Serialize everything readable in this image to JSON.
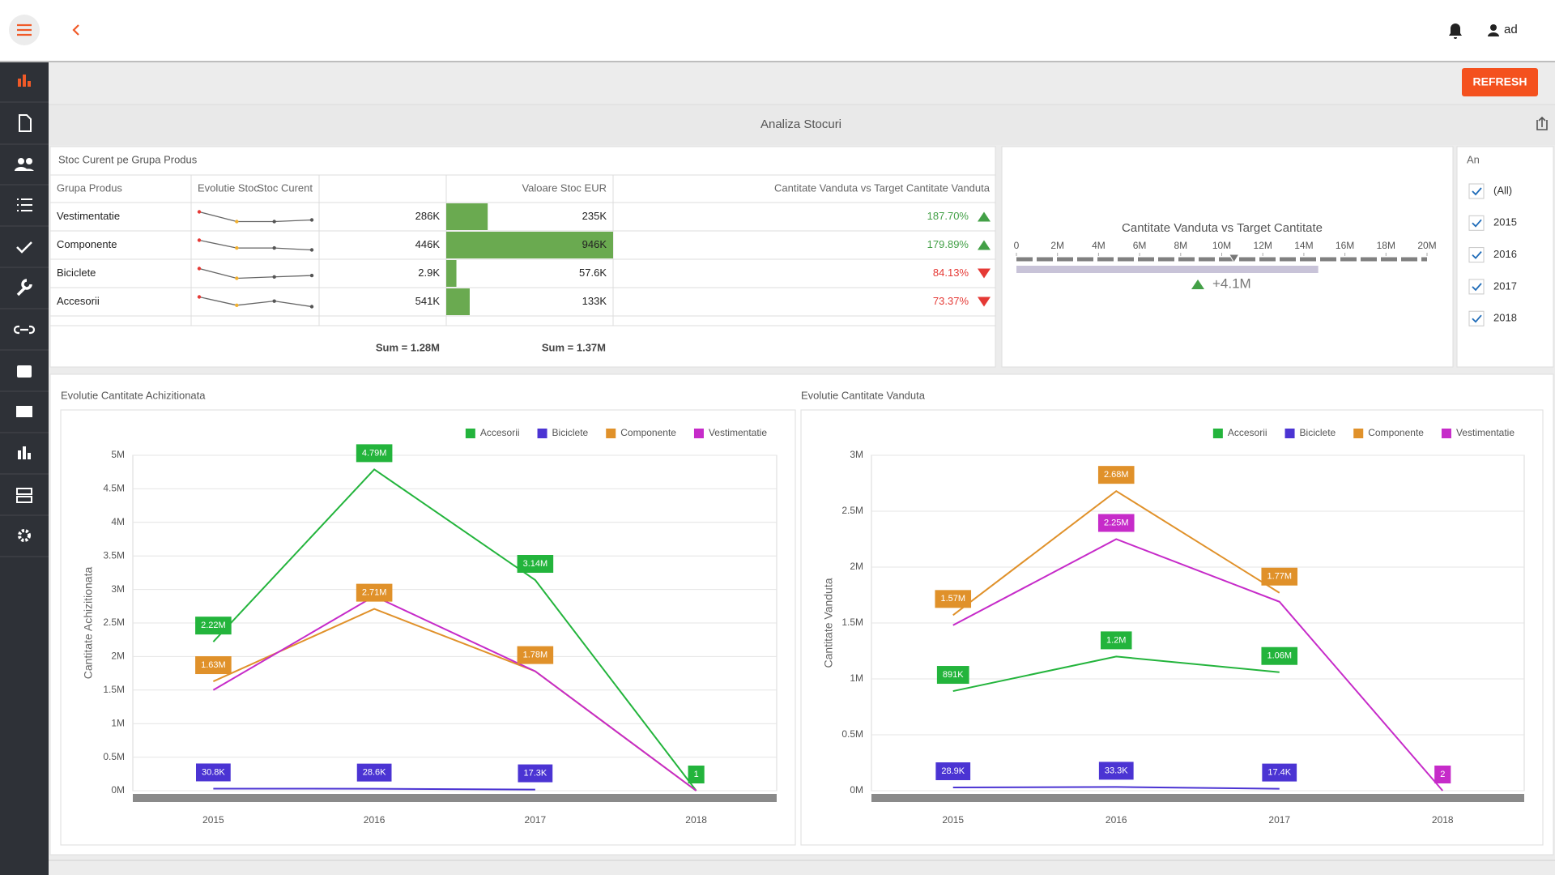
{
  "header": {
    "user": "ad"
  },
  "toolbar": {
    "button": "REFRESH"
  },
  "dashboard": {
    "title": "Analiza Stocuri"
  },
  "grid": {
    "title": "Stoc Curent pe Grupa Produs",
    "columns": [
      "Grupa Produs",
      "Evolutie Stoc",
      "Stoc Curent",
      "Valoare Stoc EUR",
      "Cantitate Vanduta vs Target Cantitate Vanduta"
    ],
    "bar_color": "#6aaa50",
    "up_color": "#43a047",
    "down_color": "#e53935",
    "rows": [
      {
        "group": "Vestimentatie",
        "trend": [
          8,
          2,
          2,
          3
        ],
        "stock": "286K",
        "value": 235000,
        "value_label": "235K",
        "ratio": "187.70%",
        "direction": "up"
      },
      {
        "group": "Componente",
        "trend": [
          8,
          4,
          4,
          3
        ],
        "stock": "446K",
        "value": 946000,
        "value_label": "946K",
        "ratio": "179.89%",
        "direction": "up"
      },
      {
        "group": "Biciclete",
        "trend": [
          8,
          1,
          2,
          3
        ],
        "stock": "2.9K",
        "value": 57600,
        "value_label": "57.6K",
        "ratio": "84.13%",
        "direction": "down"
      },
      {
        "group": "Accesorii",
        "trend": [
          7,
          1,
          4,
          0
        ],
        "stock": "541K",
        "value": 133000,
        "value_label": "133K",
        "ratio": "73.37%",
        "direction": "down"
      }
    ],
    "sums": [
      "Sum = 1.28M",
      "Sum = 1.37M"
    ]
  },
  "gauge": {
    "title": "Cantitate Vanduta vs Target Cantitate",
    "xlim": [
      0,
      20000000
    ],
    "xticks": [
      0,
      {
        "value": 2000000,
        "label": "2M"
      },
      {
        "value": 4000000,
        "label": "4M"
      },
      {
        "value": 6000000,
        "label": "6M"
      },
      {
        "value": 8000000,
        "label": "8M"
      },
      {
        "value": 10000000,
        "label": "10M"
      },
      {
        "value": 12000000,
        "label": "12M"
      },
      {
        "value": 14000000,
        "label": "14M"
      },
      {
        "value": 16000000,
        "label": "16M"
      },
      {
        "value": 18000000,
        "label": "18M"
      },
      {
        "value": 20000000,
        "label": "20M"
      }
    ],
    "actual": 14700000,
    "target": 10600000,
    "delta": "+4.1M"
  },
  "filter": {
    "title": "An",
    "items": [
      "(All)",
      "2015",
      "2016",
      "2017",
      "2018"
    ],
    "checked": [
      true,
      true,
      true,
      true,
      true
    ]
  },
  "chart_data": [
    {
      "type": "line",
      "title": "Evolutie Cantitate Achizitionata",
      "y_label": "Cantitate Achizitionata",
      "categories": [
        "2015",
        "2016",
        "2017",
        "2018"
      ],
      "ylim": [
        0,
        5000000
      ],
      "yticks": [
        {
          "value": 0,
          "label": "0M"
        },
        {
          "value": 500000,
          "label": "0.5M"
        },
        {
          "value": 1000000,
          "label": "1M"
        },
        {
          "value": 1500000,
          "label": "1.5M"
        },
        {
          "value": 2000000,
          "label": "2M"
        },
        {
          "value": 2500000,
          "label": "2.5M"
        },
        {
          "value": 3000000,
          "label": "3M"
        },
        {
          "value": 3500000,
          "label": "3.5M"
        },
        {
          "value": 4000000,
          "label": "4M"
        },
        {
          "value": 4500000,
          "label": "4.5M"
        },
        {
          "value": 5000000,
          "label": "5M"
        }
      ],
      "grid": true,
      "legend": "top-right",
      "series": [
        {
          "name": "Accesorii",
          "color": "#23b43c",
          "values": [
            2220000,
            4790000,
            3140000,
            1
          ],
          "value_labels": [
            "2.22M",
            "4.79M",
            "3.14M",
            "1"
          ]
        },
        {
          "name": "Biciclete",
          "color": "#4b34d3",
          "values": [
            30800,
            28600,
            17300,
            null
          ],
          "value_labels": [
            "30.8K",
            "28.6K",
            "17.3K",
            null
          ]
        },
        {
          "name": "Componente",
          "color": "#e0912a",
          "values": [
            1630000,
            2710000,
            1780000,
            0
          ],
          "value_labels": [
            "1.63M",
            "2.71M",
            "1.78M",
            null
          ]
        },
        {
          "name": "Vestimentatie",
          "color": "#c62bc9",
          "values": [
            1500000,
            2900000,
            1780000,
            0
          ],
          "value_labels": [
            null,
            null,
            null,
            null
          ]
        }
      ]
    },
    {
      "type": "line",
      "title": "Evolutie Cantitate Vanduta",
      "y_label": "Cantitate Vanduta",
      "categories": [
        "2015",
        "2016",
        "2017",
        "2018"
      ],
      "ylim": [
        0,
        3000000
      ],
      "yticks": [
        {
          "value": 0,
          "label": "0M"
        },
        {
          "value": 500000,
          "label": "0.5M"
        },
        {
          "value": 1000000,
          "label": "1M"
        },
        {
          "value": 1500000,
          "label": "1.5M"
        },
        {
          "value": 2000000,
          "label": "2M"
        },
        {
          "value": 2500000,
          "label": "2.5M"
        },
        {
          "value": 3000000,
          "label": "3M"
        }
      ],
      "grid": true,
      "legend": "top-right",
      "series": [
        {
          "name": "Accesorii",
          "color": "#23b43c",
          "values": [
            891000,
            1200000,
            1060000,
            null
          ],
          "value_labels": [
            "891K",
            "1.2M",
            "1.06M",
            null
          ]
        },
        {
          "name": "Biciclete",
          "color": "#4b34d3",
          "values": [
            28900,
            33300,
            17400,
            null
          ],
          "value_labels": [
            "28.9K",
            "33.3K",
            "17.4K",
            null
          ]
        },
        {
          "name": "Componente",
          "color": "#e0912a",
          "values": [
            1570000,
            2680000,
            1770000,
            null
          ],
          "value_labels": [
            "1.57M",
            "2.68M",
            "1.77M",
            null
          ]
        },
        {
          "name": "Vestimentatie",
          "color": "#c62bc9",
          "values": [
            1480000,
            2250000,
            1690000,
            2
          ],
          "value_labels": [
            null,
            "2.25M",
            null,
            "2"
          ]
        }
      ]
    }
  ]
}
